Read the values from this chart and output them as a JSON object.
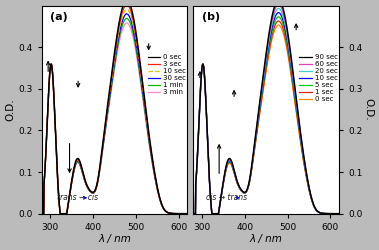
{
  "xlim": [
    280,
    620
  ],
  "ylim": [
    0.0,
    0.5
  ],
  "yticks": [
    0.0,
    0.1,
    0.2,
    0.3,
    0.4
  ],
  "xticks": [
    300,
    400,
    500,
    600
  ],
  "panel_a": {
    "label": "(a)",
    "legend_labels": [
      "0 sec",
      "3 sec",
      "10 sec",
      "30 sec",
      "1 min",
      "3 min"
    ],
    "colors": [
      "#000000",
      "#ff2200",
      "#cccc00",
      "#0000ff",
      "#00bb00",
      "#ff88cc"
    ],
    "styles": [
      "-",
      "-",
      "--",
      "-",
      "-",
      "-"
    ],
    "annotation": "trans → cis"
  },
  "panel_b": {
    "label": "(b)",
    "legend_labels": [
      "90 sec",
      "60 sec",
      "20 sec",
      "10 sec",
      "5 sec",
      "1 sec",
      "0 sec"
    ],
    "colors": [
      "#000000",
      "#dd44bb",
      "#44cccc",
      "#0000ff",
      "#00cc00",
      "#dd2200",
      "#ff8800"
    ],
    "styles": [
      "-",
      "-",
      "-",
      "-",
      "-",
      "-",
      "-"
    ],
    "annotation": "cis → trans"
  },
  "ylabel_left": "O.D.",
  "ylabel_right": "O.D.",
  "xlabel": "λ / nm",
  "figure_bg": "#bbbbbb"
}
